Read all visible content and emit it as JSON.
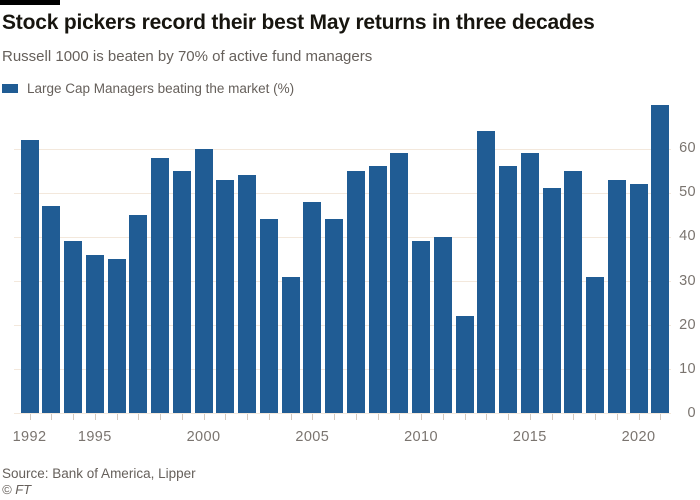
{
  "header": {
    "title": "Stock pickers record their best May returns in three decades",
    "subtitle": "Russell 1000 is beaten by 70% of active fund managers"
  },
  "legend": {
    "label": "Large Cap Managers beating the market (%)",
    "swatch_color": "#205c94"
  },
  "chart_data": {
    "type": "bar",
    "title": "Stock pickers record their best May returns in three decades",
    "subtitle": "Russell 1000 is beaten by 70% of active fund managers",
    "series_label": "Large Cap Managers beating the market (%)",
    "categories": [
      1992,
      1993,
      1994,
      1995,
      1996,
      1997,
      1998,
      1999,
      2000,
      2001,
      2002,
      2003,
      2004,
      2005,
      2006,
      2007,
      2008,
      2009,
      2010,
      2011,
      2012,
      2013,
      2014,
      2015,
      2016,
      2017,
      2018,
      2019,
      2020,
      2021
    ],
    "values": [
      62,
      47,
      39,
      36,
      35,
      45,
      58,
      55,
      60,
      53,
      54,
      44,
      31,
      48,
      44,
      55,
      56,
      59,
      39,
      40,
      22,
      64,
      56,
      59,
      51,
      55,
      31,
      53,
      52,
      70
    ],
    "x_tick_labels": [
      "1992",
      "1995",
      "2000",
      "2005",
      "2010",
      "2015",
      "2020"
    ],
    "y_ticks": [
      0,
      10,
      20,
      30,
      40,
      50,
      60
    ],
    "ylim": [
      0,
      70
    ],
    "y_axis_side": "right",
    "grid": "horizontal",
    "bar_color": "#205c94",
    "gridline_color": "#f3e8dc",
    "tick_color": "#d5cabf"
  },
  "footer": {
    "source": "Source: Bank of America, Lipper",
    "copyright": "© FT"
  }
}
